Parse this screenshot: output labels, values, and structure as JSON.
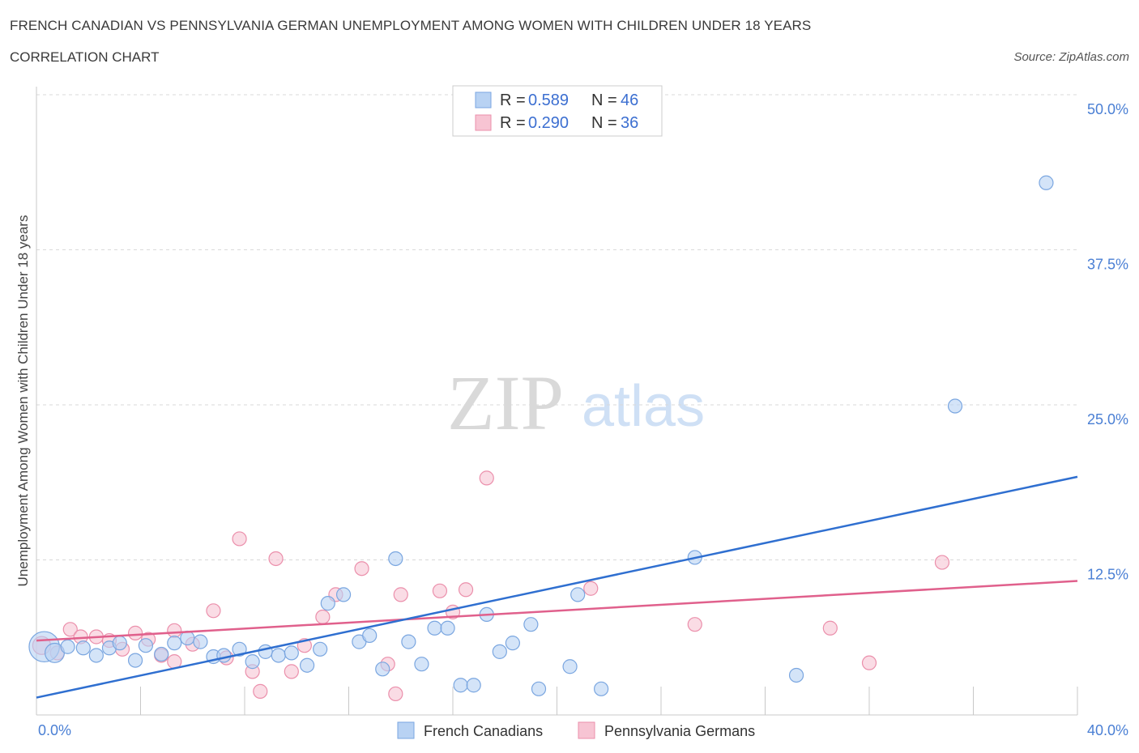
{
  "header": {
    "title": "FRENCH CANADIAN VS PENNSYLVANIA GERMAN UNEMPLOYMENT AMONG WOMEN WITH CHILDREN UNDER 18 YEARS",
    "subtitle": "CORRELATION CHART",
    "source": "Source: ZipAtlas.com"
  },
  "watermark": {
    "zip": "ZIP",
    "atlas": "atlas"
  },
  "legend": {
    "rows": [
      {
        "r_label": "R =",
        "r_value": "0.589",
        "n_label": "N =",
        "n_value": "46"
      },
      {
        "r_label": "R =",
        "r_value": "0.290",
        "n_label": "N =",
        "n_value": "36"
      }
    ]
  },
  "bottom_legend": [
    "French Canadians",
    "Pennsylvania Germans"
  ],
  "colors": {
    "blue_fill": "#b8d2f3",
    "blue_stroke": "#7aa6e0",
    "blue_line": "#2f6fd0",
    "pink_fill": "#f7c4d3",
    "pink_stroke": "#eb8fab",
    "pink_line": "#e0608c",
    "grid": "#d9d9d9",
    "axis_label": "#4a7fd4"
  },
  "chart_data": {
    "type": "scatter",
    "title": "FRENCH CANADIAN VS PENNSYLVANIA GERMAN UNEMPLOYMENT AMONG WOMEN WITH CHILDREN UNDER 18 YEARS",
    "xlabel": "",
    "ylabel": "Unemployment Among Women with Children Under 18 years",
    "xlim": [
      0,
      40
    ],
    "ylim": [
      0,
      50
    ],
    "x_tick_labels": [
      "0.0%",
      "40.0%"
    ],
    "y_ticks": [
      12.5,
      25.0,
      37.5,
      50.0
    ],
    "y_tick_labels": [
      "12.5%",
      "25.0%",
      "37.5%",
      "50.0%"
    ],
    "grid": "horizontal-dashed",
    "legend_position": "top-center",
    "series": [
      {
        "name": "French Canadians",
        "color": "#7aa6e0",
        "R": 0.589,
        "N": 46,
        "trend": {
          "x": [
            0,
            40
          ],
          "y": [
            1.4,
            19.2
          ]
        },
        "points": [
          [
            0.3,
            5.5,
            2.2
          ],
          [
            0.7,
            5.0,
            1.4
          ],
          [
            1.2,
            5.5,
            1
          ],
          [
            1.8,
            5.4,
            1
          ],
          [
            2.3,
            4.8,
            1
          ],
          [
            2.8,
            5.4,
            1
          ],
          [
            3.2,
            5.8,
            1
          ],
          [
            3.8,
            4.4,
            1
          ],
          [
            4.2,
            5.6,
            1
          ],
          [
            4.8,
            4.9,
            1
          ],
          [
            5.3,
            5.8,
            1
          ],
          [
            5.8,
            6.2,
            1
          ],
          [
            6.3,
            5.9,
            1
          ],
          [
            6.8,
            4.7,
            1
          ],
          [
            7.2,
            4.8,
            1
          ],
          [
            7.8,
            5.3,
            1
          ],
          [
            8.3,
            4.3,
            1
          ],
          [
            8.8,
            5.1,
            1
          ],
          [
            9.3,
            4.8,
            1
          ],
          [
            9.8,
            5.0,
            1
          ],
          [
            10.4,
            4.0,
            1
          ],
          [
            10.9,
            5.3,
            1
          ],
          [
            11.2,
            9.0,
            1
          ],
          [
            11.8,
            9.7,
            1
          ],
          [
            12.4,
            5.9,
            1
          ],
          [
            12.8,
            6.4,
            1
          ],
          [
            13.3,
            3.7,
            1
          ],
          [
            13.8,
            12.6,
            1
          ],
          [
            14.3,
            5.9,
            1
          ],
          [
            14.8,
            4.1,
            1
          ],
          [
            15.3,
            7.0,
            1
          ],
          [
            15.8,
            7.0,
            1
          ],
          [
            16.3,
            2.4,
            1
          ],
          [
            16.8,
            2.4,
            1
          ],
          [
            17.3,
            8.1,
            1
          ],
          [
            17.8,
            5.1,
            1
          ],
          [
            18.3,
            5.8,
            1
          ],
          [
            19.0,
            7.3,
            1
          ],
          [
            19.3,
            2.1,
            1
          ],
          [
            20.5,
            3.9,
            1
          ],
          [
            20.8,
            9.7,
            1
          ],
          [
            21.7,
            2.1,
            1
          ],
          [
            25.3,
            12.7,
            1
          ],
          [
            29.2,
            3.2,
            1
          ],
          [
            35.3,
            24.9,
            1
          ],
          [
            38.8,
            42.9,
            1
          ]
        ]
      },
      {
        "name": "Pennsylvania Germans",
        "color": "#eb8fab",
        "R": 0.29,
        "N": 36,
        "trend": {
          "x": [
            0,
            40
          ],
          "y": [
            6.0,
            10.8
          ]
        },
        "points": [
          [
            0.2,
            5.6,
            1.3
          ],
          [
            0.8,
            5.0,
            1
          ],
          [
            1.3,
            6.9,
            1
          ],
          [
            1.7,
            6.3,
            1
          ],
          [
            2.3,
            6.3,
            1
          ],
          [
            2.8,
            6.0,
            1
          ],
          [
            3.3,
            5.3,
            1
          ],
          [
            3.8,
            6.6,
            1
          ],
          [
            4.3,
            6.1,
            1
          ],
          [
            4.8,
            4.8,
            1
          ],
          [
            5.3,
            4.3,
            1
          ],
          [
            5.3,
            6.8,
            1
          ],
          [
            6.0,
            5.7,
            1
          ],
          [
            6.8,
            8.4,
            1
          ],
          [
            7.3,
            4.6,
            1
          ],
          [
            7.8,
            14.2,
            1
          ],
          [
            8.3,
            3.5,
            1
          ],
          [
            8.6,
            1.9,
            1
          ],
          [
            9.2,
            12.6,
            1
          ],
          [
            9.8,
            3.5,
            1
          ],
          [
            10.3,
            5.6,
            1
          ],
          [
            11.0,
            7.9,
            1
          ],
          [
            11.5,
            9.7,
            1
          ],
          [
            12.5,
            11.8,
            1
          ],
          [
            13.5,
            4.1,
            1
          ],
          [
            13.8,
            1.7,
            1
          ],
          [
            14.0,
            9.7,
            1
          ],
          [
            15.5,
            10.0,
            1
          ],
          [
            16.0,
            8.3,
            1
          ],
          [
            16.5,
            10.1,
            1
          ],
          [
            17.3,
            19.1,
            1
          ],
          [
            21.3,
            10.2,
            1
          ],
          [
            25.3,
            7.3,
            1
          ],
          [
            30.5,
            7.0,
            1
          ],
          [
            32.0,
            4.2,
            1
          ],
          [
            34.8,
            12.3,
            1
          ]
        ]
      }
    ]
  }
}
